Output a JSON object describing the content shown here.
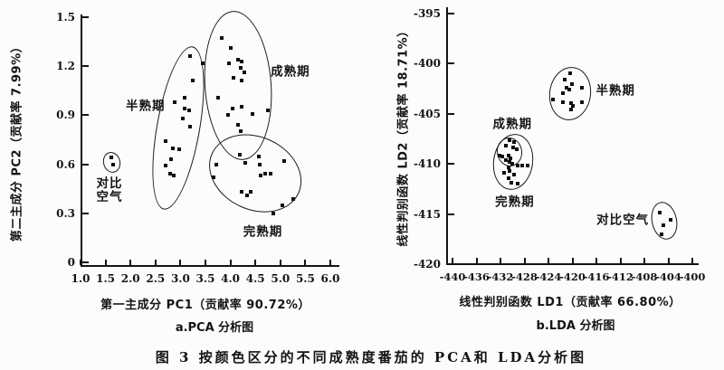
{
  "figure": {
    "caption": "图 3  按颜色区分的不同成熟度番茄的 PCA和 LDA分析图"
  },
  "chart_data": [
    {
      "id": "pca",
      "type": "scatter",
      "subtitle": "a.PCA 分析图",
      "xlabel": "第一主成分 PC1（贡献率 90.72%）",
      "ylabel": "第二主成分 PC2（贡献率 7.99%）",
      "xlim": [
        1.0,
        6.0
      ],
      "ylim": [
        0,
        1.5
      ],
      "xticks": [
        "1.0",
        "1.5",
        "2.0",
        "2.5",
        "3.0",
        "3.5",
        "4.0",
        "4.5",
        "5.0",
        "5.5",
        "6.0"
      ],
      "yticks": [
        "1.5",
        "1.2",
        "0.9",
        "0.6",
        "0.3",
        "0"
      ],
      "grid": false,
      "clusters": [
        {
          "id": "duibi-kongqi",
          "label": "对比\n空气",
          "label_pos": [
            1.58,
            0.44
          ],
          "ellipse": {
            "cx": 1.61,
            "cy": 0.62,
            "rx": 0.15,
            "ry": 0.058,
            "rot": -15
          },
          "points": [
            [
              1.62,
              0.64
            ],
            [
              1.66,
              0.6
            ]
          ]
        },
        {
          "id": "banshuqi",
          "label": "半熟期",
          "label_pos": [
            2.3,
            0.95
          ],
          "ellipse": {
            "cx": 2.95,
            "cy": 0.83,
            "rx": 0.42,
            "ry": 0.5,
            "rot": 10
          },
          "points": [
            [
              3.2,
              1.26
            ],
            [
              3.45,
              1.22
            ],
            [
              3.24,
              1.11
            ],
            [
              3.09,
              1.01
            ],
            [
              2.88,
              0.98
            ],
            [
              3.08,
              0.94
            ],
            [
              3.17,
              0.93
            ],
            [
              3.04,
              0.88
            ],
            [
              3.2,
              0.83
            ],
            [
              2.71,
              0.74
            ],
            [
              2.84,
              0.7
            ],
            [
              2.97,
              0.69
            ],
            [
              2.81,
              0.63
            ],
            [
              2.7,
              0.59
            ],
            [
              2.79,
              0.54
            ],
            [
              2.86,
              0.53
            ]
          ]
        },
        {
          "id": "chengshuqi",
          "label": "成熟期",
          "label_pos": [
            5.2,
            1.16
          ],
          "ellipse": {
            "cx": 4.14,
            "cy": 1.09,
            "rx": 0.65,
            "ry": 0.45,
            "rot": -4
          },
          "points": [
            [
              3.83,
              1.37
            ],
            [
              4.01,
              1.31
            ],
            [
              4.16,
              1.24
            ],
            [
              4.23,
              1.23
            ],
            [
              3.98,
              1.22
            ],
            [
              4.21,
              1.19
            ],
            [
              4.27,
              1.16
            ],
            [
              4.07,
              1.13
            ],
            [
              4.23,
              1.11
            ],
            [
              3.76,
              1.01
            ],
            [
              4.23,
              0.95
            ],
            [
              4.05,
              0.94
            ],
            [
              4.75,
              0.93
            ],
            [
              4.45,
              0.91
            ],
            [
              3.96,
              0.9
            ],
            [
              4.16,
              0.84
            ],
            [
              4.21,
              0.8
            ]
          ]
        },
        {
          "id": "wanshuqi",
          "label": "完熟期",
          "label_pos": [
            4.65,
            0.18
          ],
          "ellipse": {
            "cx": 4.48,
            "cy": 0.55,
            "rx": 0.94,
            "ry": 0.22,
            "rot": 25
          },
          "points": [
            [
              4.18,
              0.66
            ],
            [
              4.56,
              0.65
            ],
            [
              5.08,
              0.62
            ],
            [
              4.29,
              0.61
            ],
            [
              4.59,
              0.6
            ],
            [
              3.71,
              0.6
            ],
            [
              4.7,
              0.54
            ],
            [
              4.81,
              0.54
            ],
            [
              4.61,
              0.53
            ],
            [
              3.67,
              0.52
            ],
            [
              4.23,
              0.43
            ],
            [
              4.41,
              0.43
            ],
            [
              4.34,
              0.41
            ],
            [
              5.26,
              0.39
            ],
            [
              5.04,
              0.35
            ],
            [
              4.85,
              0.3
            ]
          ]
        }
      ]
    },
    {
      "id": "lda",
      "type": "scatter",
      "subtitle": "b.LDA 分析图",
      "xlabel": "线性判别函数 LD1（贡献率 66.80%）",
      "ylabel": "线性判别函数 LD2（贡献率 18.71%）",
      "xlim": [
        -440,
        -400
      ],
      "ylim": [
        -420,
        -395
      ],
      "xticks": [
        "-440",
        "-436",
        "-432",
        "-428",
        "-424",
        "-420",
        "-416",
        "-412",
        "-408",
        "-404",
        "-400"
      ],
      "yticks": [
        "-395",
        "-400",
        "-405",
        "-410",
        "-415",
        "-420"
      ],
      "grid": false,
      "clusters": [
        {
          "id": "banshuqi",
          "label": "半熟期",
          "label_pos": [
            -412.8,
            -402.8
          ],
          "ellipse": {
            "cx": -420.5,
            "cy": -402.9,
            "rx": 3.3,
            "ry": 2.55,
            "rot": 8
          },
          "points": [
            [
              -420.4,
              -401.0
            ],
            [
              -421.3,
              -401.6
            ],
            [
              -420.1,
              -402.0
            ],
            [
              -421.0,
              -402.4
            ],
            [
              -418.4,
              -402.4
            ],
            [
              -420.5,
              -402.6
            ],
            [
              -421.6,
              -402.9
            ],
            [
              -423.2,
              -403.6
            ],
            [
              -421.6,
              -403.8
            ],
            [
              -418.4,
              -403.8
            ],
            [
              -420.2,
              -403.9
            ],
            [
              -419.9,
              -404.2
            ],
            [
              -420.2,
              -404.6
            ]
          ]
        },
        {
          "id": "chengshuqi",
          "label": "成熟期",
          "label_pos": [
            -430.0,
            -406.1
          ],
          "ellipse": {
            "cx": -430.6,
            "cy": -408.7,
            "rx": 1.95,
            "ry": 1.35,
            "rot": -10
          },
          "points": [
            [
              -430.5,
              -407.6
            ],
            [
              -429.7,
              -407.8
            ],
            [
              -431.1,
              -408.2
            ],
            [
              -429.9,
              -408.4
            ],
            [
              -429.3,
              -408.5
            ],
            [
              -432.2,
              -409.2
            ],
            [
              -430.6,
              -409.2
            ],
            [
              -431.7,
              -409.3
            ],
            [
              -430.3,
              -409.4
            ],
            [
              -431.1,
              -409.6
            ]
          ]
        },
        {
          "id": "wanshuqi",
          "label": "完熟期",
          "label_pos": [
            -429.6,
            -413.9
          ],
          "ellipse": {
            "cx": -430.0,
            "cy": -409.7,
            "rx": 3.2,
            "ry": 2.7,
            "rot": 8
          },
          "points": [
            [
              -430.5,
              -409.8
            ],
            [
              -430.0,
              -410.0
            ],
            [
              -429.1,
              -410.2
            ],
            [
              -428.4,
              -410.2
            ],
            [
              -427.5,
              -410.2
            ],
            [
              -430.6,
              -410.3
            ],
            [
              -430.5,
              -410.7
            ],
            [
              -431.4,
              -410.9
            ],
            [
              -429.7,
              -411.1
            ],
            [
              -430.6,
              -411.4
            ],
            [
              -430.2,
              -411.9
            ],
            [
              -429.1,
              -412.0
            ]
          ]
        },
        {
          "id": "duibi-kongqi",
          "label": "对比空气",
          "label_pos": [
            -411.6,
            -415.7
          ],
          "ellipse": {
            "cx": -404.8,
            "cy": -415.6,
            "rx": 1.95,
            "ry": 1.8,
            "rot": -12
          },
          "points": [
            [
              -405.4,
              -414.9
            ],
            [
              -403.6,
              -415.6
            ],
            [
              -404.8,
              -416.1
            ],
            [
              -405.1,
              -417.0
            ]
          ]
        }
      ]
    }
  ]
}
